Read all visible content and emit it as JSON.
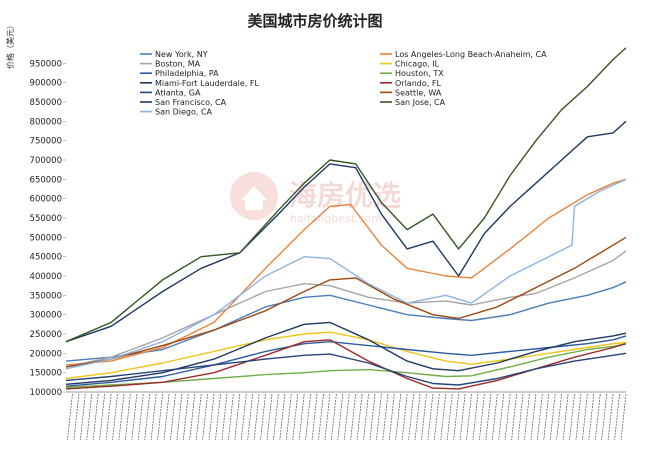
{
  "chart_data": {
    "type": "line",
    "title": "美国城市房价统计图",
    "ylabel": "价格（美元）",
    "xlabel": "",
    "ylim": [
      100000,
      1000000
    ],
    "y_ticks": [
      100000,
      150000,
      200000,
      250000,
      300000,
      350000,
      400000,
      450000,
      500000,
      550000,
      600000,
      650000,
      700000,
      750000,
      800000,
      850000,
      900000,
      950000
    ],
    "x_range": [
      "1996-04",
      "2018-01"
    ],
    "x_tick_note": "monthly tick labels from 1996 to 2018 (rotated, illegible)",
    "grid": false,
    "legend_position": "top",
    "watermark": {
      "name": "海房优选",
      "domain": "haifangbest.com"
    },
    "series": [
      {
        "name": "New York, NY",
        "color": "#4a7ebb",
        "points": [
          [
            1996.25,
            180000
          ],
          [
            1998,
            190000
          ],
          [
            2000,
            210000
          ],
          [
            2002,
            260000
          ],
          [
            2004,
            320000
          ],
          [
            2005.5,
            345000
          ],
          [
            2006.5,
            350000
          ],
          [
            2008,
            325000
          ],
          [
            2009.5,
            300000
          ],
          [
            2011,
            290000
          ],
          [
            2012,
            285000
          ],
          [
            2013.5,
            300000
          ],
          [
            2015,
            330000
          ],
          [
            2016.5,
            350000
          ],
          [
            2017.5,
            370000
          ],
          [
            2018,
            385000
          ]
        ]
      },
      {
        "name": "Los Angeles-Long Beach-Anaheim, CA",
        "color": "#e8843a",
        "points": [
          [
            1996.25,
            170000
          ],
          [
            1998,
            180000
          ],
          [
            2000,
            215000
          ],
          [
            2002,
            280000
          ],
          [
            2004,
            420000
          ],
          [
            2005.5,
            520000
          ],
          [
            2006.5,
            580000
          ],
          [
            2007.3,
            585000
          ],
          [
            2008.5,
            480000
          ],
          [
            2009.5,
            420000
          ],
          [
            2011,
            400000
          ],
          [
            2012,
            395000
          ],
          [
            2013.5,
            470000
          ],
          [
            2015,
            550000
          ],
          [
            2016.5,
            610000
          ],
          [
            2017.5,
            640000
          ],
          [
            2018,
            650000
          ]
        ]
      },
      {
        "name": "Boston, MA",
        "color": "#a5a5a5",
        "points": [
          [
            1996.25,
            165000
          ],
          [
            1998,
            190000
          ],
          [
            2000,
            240000
          ],
          [
            2002,
            300000
          ],
          [
            2004,
            360000
          ],
          [
            2005.5,
            380000
          ],
          [
            2006.5,
            375000
          ],
          [
            2008,
            345000
          ],
          [
            2009.5,
            330000
          ],
          [
            2011,
            335000
          ],
          [
            2012,
            325000
          ],
          [
            2013.5,
            345000
          ],
          [
            2014.5,
            355000
          ],
          [
            2016,
            395000
          ],
          [
            2017.5,
            440000
          ],
          [
            2018,
            465000
          ]
        ]
      },
      {
        "name": "Chicago, IL",
        "color": "#f0c419",
        "points": [
          [
            1996.25,
            135000
          ],
          [
            1998,
            150000
          ],
          [
            2000,
            175000
          ],
          [
            2002,
            205000
          ],
          [
            2004,
            235000
          ],
          [
            2005.5,
            250000
          ],
          [
            2006.5,
            255000
          ],
          [
            2008,
            235000
          ],
          [
            2009.5,
            205000
          ],
          [
            2011,
            180000
          ],
          [
            2012,
            172000
          ],
          [
            2013.5,
            185000
          ],
          [
            2015,
            200000
          ],
          [
            2016.5,
            215000
          ],
          [
            2017.5,
            225000
          ],
          [
            2018,
            228000
          ]
        ]
      },
      {
        "name": "Philadelphia, PA",
        "color": "#2c5aa0",
        "points": [
          [
            1996.25,
            115000
          ],
          [
            1998,
            125000
          ],
          [
            2000,
            140000
          ],
          [
            2002,
            170000
          ],
          [
            2004,
            205000
          ],
          [
            2005.5,
            225000
          ],
          [
            2006.5,
            230000
          ],
          [
            2008,
            220000
          ],
          [
            2009.5,
            210000
          ],
          [
            2011,
            200000
          ],
          [
            2012,
            195000
          ],
          [
            2013.5,
            205000
          ],
          [
            2015,
            215000
          ],
          [
            2016.5,
            225000
          ],
          [
            2017.5,
            235000
          ],
          [
            2018,
            245000
          ]
        ]
      },
      {
        "name": "Houston, TX",
        "color": "#70ad47",
        "points": [
          [
            1996.25,
            112000
          ],
          [
            1998,
            118000
          ],
          [
            2000,
            125000
          ],
          [
            2002,
            135000
          ],
          [
            2004,
            145000
          ],
          [
            2005.5,
            150000
          ],
          [
            2006.5,
            155000
          ],
          [
            2008,
            158000
          ],
          [
            2009.5,
            150000
          ],
          [
            2011,
            140000
          ],
          [
            2012,
            142000
          ],
          [
            2013.5,
            165000
          ],
          [
            2015,
            190000
          ],
          [
            2016.5,
            210000
          ],
          [
            2017.5,
            218000
          ],
          [
            2018,
            225000
          ]
        ]
      },
      {
        "name": "Miami-Fort Lauderdale, FL",
        "color": "#1f3864",
        "points": [
          [
            1996.25,
            120000
          ],
          [
            1998,
            130000
          ],
          [
            2000,
            150000
          ],
          [
            2002,
            185000
          ],
          [
            2004,
            240000
          ],
          [
            2005.5,
            275000
          ],
          [
            2006.5,
            280000
          ],
          [
            2008,
            235000
          ],
          [
            2009.5,
            180000
          ],
          [
            2010.5,
            160000
          ],
          [
            2011.5,
            155000
          ],
          [
            2013,
            175000
          ],
          [
            2014.5,
            205000
          ],
          [
            2016,
            230000
          ],
          [
            2017.5,
            245000
          ],
          [
            2018,
            252000
          ]
        ]
      },
      {
        "name": "Orlando, FL",
        "color": "#9e2a2b",
        "points": [
          [
            1996.25,
            108000
          ],
          [
            1998,
            115000
          ],
          [
            2000,
            125000
          ],
          [
            2002,
            150000
          ],
          [
            2004,
            195000
          ],
          [
            2005.5,
            230000
          ],
          [
            2006.5,
            235000
          ],
          [
            2008,
            180000
          ],
          [
            2009.5,
            135000
          ],
          [
            2010.5,
            110000
          ],
          [
            2011.5,
            108000
          ],
          [
            2013,
            130000
          ],
          [
            2014.5,
            160000
          ],
          [
            2016,
            190000
          ],
          [
            2017.5,
            215000
          ],
          [
            2018,
            225000
          ]
        ]
      },
      {
        "name": "Atlanta, GA",
        "color": "#264478",
        "points": [
          [
            1996.25,
            130000
          ],
          [
            1998,
            140000
          ],
          [
            2000,
            155000
          ],
          [
            2002,
            170000
          ],
          [
            2004,
            185000
          ],
          [
            2005.5,
            195000
          ],
          [
            2006.5,
            198000
          ],
          [
            2008,
            175000
          ],
          [
            2009.5,
            140000
          ],
          [
            2010.5,
            122000
          ],
          [
            2011.5,
            118000
          ],
          [
            2013,
            135000
          ],
          [
            2014.5,
            160000
          ],
          [
            2016,
            180000
          ],
          [
            2017.5,
            195000
          ],
          [
            2018,
            200000
          ]
        ]
      },
      {
        "name": "Seattle, WA",
        "color": "#9e480e",
        "points": [
          [
            1996.25,
            165000
          ],
          [
            1998,
            185000
          ],
          [
            2000,
            220000
          ],
          [
            2002,
            260000
          ],
          [
            2004,
            310000
          ],
          [
            2005.5,
            360000
          ],
          [
            2006.5,
            390000
          ],
          [
            2007.5,
            395000
          ],
          [
            2009,
            340000
          ],
          [
            2010.5,
            300000
          ],
          [
            2011.5,
            290000
          ],
          [
            2013,
            320000
          ],
          [
            2014.5,
            370000
          ],
          [
            2016,
            420000
          ],
          [
            2017.5,
            480000
          ],
          [
            2018,
            500000
          ]
        ]
      },
      {
        "name": "San Francisco, CA",
        "color": "#203864",
        "points": [
          [
            1996.25,
            230000
          ],
          [
            1998,
            270000
          ],
          [
            2000,
            360000
          ],
          [
            2001.5,
            420000
          ],
          [
            2003,
            460000
          ],
          [
            2004.5,
            560000
          ],
          [
            2005.5,
            630000
          ],
          [
            2006.5,
            690000
          ],
          [
            2007.5,
            680000
          ],
          [
            2008.5,
            560000
          ],
          [
            2009.5,
            470000
          ],
          [
            2010.5,
            490000
          ],
          [
            2011.5,
            400000
          ],
          [
            2012.5,
            510000
          ],
          [
            2013.5,
            580000
          ],
          [
            2014.5,
            640000
          ],
          [
            2015.5,
            700000
          ],
          [
            2016.5,
            760000
          ],
          [
            2017.5,
            770000
          ],
          [
            2018,
            800000
          ]
        ]
      },
      {
        "name": "San Jose, CA",
        "color": "#375623",
        "points": [
          [
            1996.25,
            230000
          ],
          [
            1998,
            280000
          ],
          [
            2000,
            390000
          ],
          [
            2001.5,
            450000
          ],
          [
            2003,
            460000
          ],
          [
            2004.5,
            570000
          ],
          [
            2005.5,
            640000
          ],
          [
            2006.5,
            700000
          ],
          [
            2007.5,
            690000
          ],
          [
            2008.5,
            590000
          ],
          [
            2009.5,
            520000
          ],
          [
            2010.5,
            560000
          ],
          [
            2011.5,
            470000
          ],
          [
            2012.5,
            550000
          ],
          [
            2013.5,
            660000
          ],
          [
            2014.5,
            750000
          ],
          [
            2015.5,
            830000
          ],
          [
            2016.5,
            890000
          ],
          [
            2017.5,
            960000
          ],
          [
            2018,
            990000
          ]
        ]
      },
      {
        "name": "San Diego, CA",
        "color": "#8db3e2",
        "points": [
          [
            1996.25,
            160000
          ],
          [
            1998,
            185000
          ],
          [
            2000,
            230000
          ],
          [
            2002,
            300000
          ],
          [
            2004,
            400000
          ],
          [
            2005.5,
            450000
          ],
          [
            2006.5,
            445000
          ],
          [
            2008,
            380000
          ],
          [
            2009.5,
            330000
          ],
          [
            2011,
            350000
          ],
          [
            2012,
            330000
          ],
          [
            2013.5,
            400000
          ],
          [
            2015,
            450000
          ],
          [
            2015.9,
            480000
          ],
          [
            2016,
            580000
          ],
          [
            2017,
            620000
          ],
          [
            2018,
            650000
          ]
        ]
      }
    ]
  }
}
